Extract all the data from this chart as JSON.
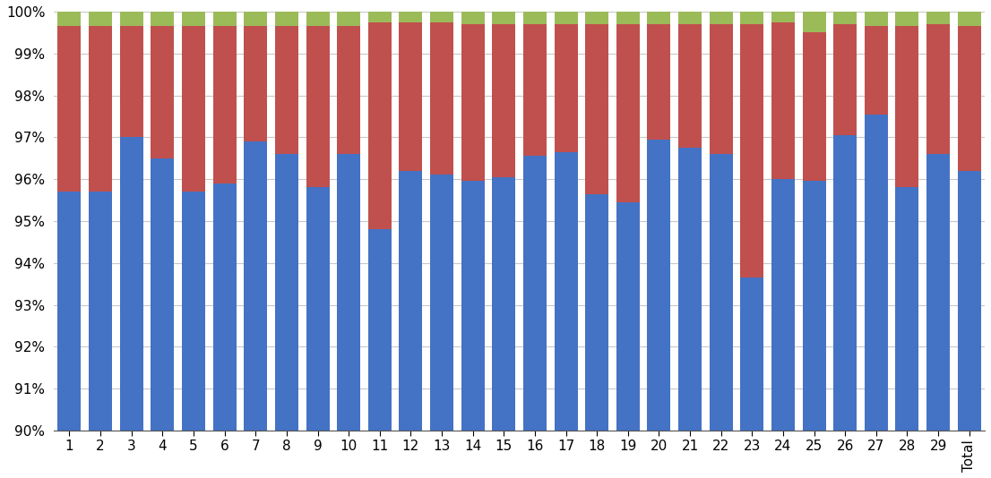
{
  "categories": [
    "1",
    "2",
    "3",
    "4",
    "5",
    "6",
    "7",
    "8",
    "9",
    "10",
    "11",
    "12",
    "13",
    "14",
    "15",
    "16",
    "17",
    "18",
    "19",
    "20",
    "21",
    "22",
    "23",
    "24",
    "25",
    "26",
    "27",
    "28",
    "29",
    "Total"
  ],
  "blue": [
    95.7,
    95.7,
    97.0,
    96.5,
    95.7,
    95.9,
    96.9,
    96.6,
    95.8,
    96.6,
    94.8,
    96.2,
    96.1,
    95.95,
    96.05,
    96.55,
    96.65,
    95.65,
    95.45,
    96.95,
    96.75,
    96.6,
    93.65,
    96.0,
    95.95,
    97.05,
    97.55,
    95.8,
    96.6,
    96.2
  ],
  "red": [
    3.95,
    3.95,
    2.65,
    3.15,
    3.95,
    3.75,
    2.75,
    3.05,
    3.85,
    3.05,
    4.95,
    3.55,
    3.65,
    3.75,
    3.65,
    3.15,
    3.05,
    4.05,
    4.25,
    2.75,
    2.95,
    3.1,
    6.05,
    3.75,
    3.55,
    2.65,
    2.1,
    3.85,
    3.1,
    3.45
  ],
  "green": [
    0.35,
    0.35,
    0.35,
    0.35,
    0.35,
    0.35,
    0.35,
    0.35,
    0.35,
    0.35,
    0.25,
    0.25,
    0.25,
    0.3,
    0.3,
    0.3,
    0.3,
    0.3,
    0.3,
    0.3,
    0.3,
    0.3,
    0.3,
    0.25,
    0.5,
    0.3,
    0.35,
    0.35,
    0.3,
    0.35
  ],
  "blue_color": "#4472C4",
  "red_color": "#C0504D",
  "green_color": "#9BBB59",
  "ymin": 90.0,
  "ymax": 100.0,
  "yticks": [
    90,
    91,
    92,
    93,
    94,
    95,
    96,
    97,
    98,
    99,
    100
  ],
  "ytick_labels": [
    "90%",
    "91%",
    "92%",
    "93%",
    "94%",
    "95%",
    "96%",
    "97%",
    "98%",
    "99%",
    "100%"
  ],
  "background_color": "#FFFFFF",
  "grid_color": "#C8C8C8"
}
